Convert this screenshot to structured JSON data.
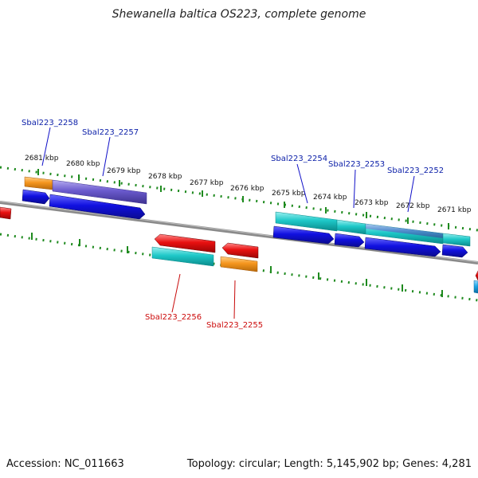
{
  "title": "Shewanella baltica OS223, complete genome",
  "footer": {
    "accession": "Accession: NC_011663",
    "summary": "Topology: circular; Length: 5,145,902 bp; Genes: 4,281"
  },
  "kbp_labels": [
    "2681 kbp",
    "2680 kbp",
    "2679 kbp",
    "2678 kbp",
    "2677 kbp",
    "2676 kbp",
    "2675 kbp",
    "2674 kbp",
    "2673 kbp",
    "2672 kbp",
    "2671 kbp"
  ],
  "gene_labels_forward": [
    "Sbal223_2258",
    "Sbal223_2257",
    "Sbal223_2254",
    "Sbal223_2253",
    "Sbal223_2252"
  ],
  "gene_labels_reverse": [
    "Sbal223_2256",
    "Sbal223_2255"
  ],
  "colors": {
    "backbone": "#7a7a7a",
    "tick": "#1e8a1e",
    "cds": "#1010e0",
    "orange": "#f5961e",
    "purple": "#6a5acd",
    "cyan": "#1ec8c8",
    "red": "#e81010",
    "skyblue": "#1ea8e8"
  }
}
